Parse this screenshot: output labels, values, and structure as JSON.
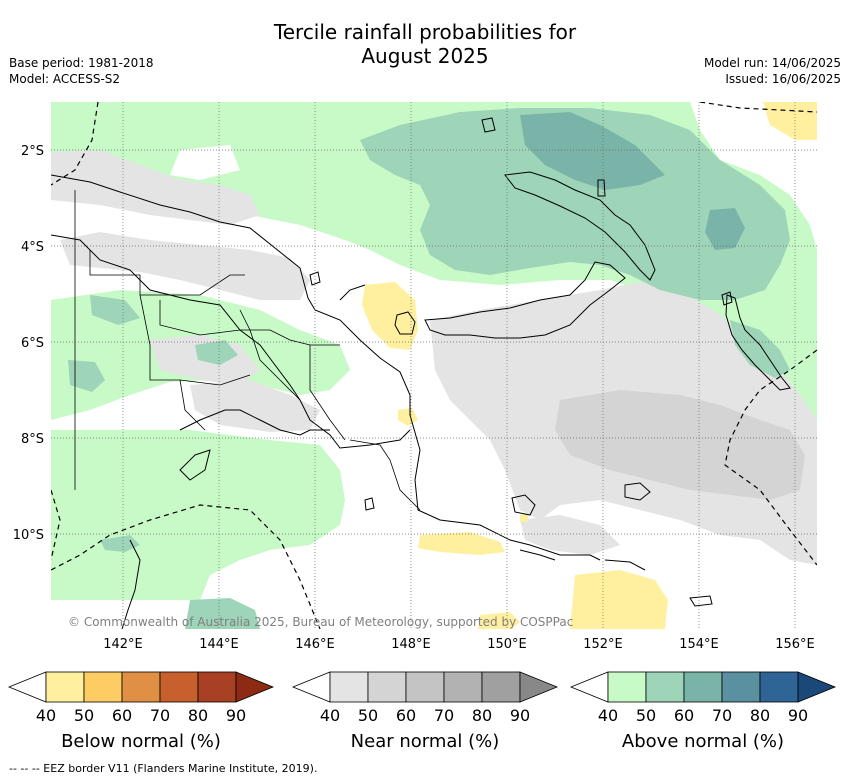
{
  "header": {
    "title_line1": "Tercile rainfall probabilities for",
    "title_line2": "August 2025",
    "base_period": "Base period: 1981-2018",
    "model": "Model: ACCESS-S2",
    "model_run": "Model run: 14/06/2025",
    "issued": "Issued: 16/06/2025"
  },
  "map": {
    "lat_labels": [
      "2°S",
      "4°S",
      "6°S",
      "8°S",
      "10°S"
    ],
    "lon_labels": [
      "142°E",
      "144°E",
      "146°E",
      "148°E",
      "150°E",
      "152°E",
      "154°E",
      "156°E"
    ],
    "lat_range": [
      -12,
      -1
    ],
    "lon_range": [
      140.5,
      156.5
    ],
    "credit": "© Commonwealth of Australia 2025, Bureau of Meteorology, supported by COSPPac"
  },
  "colorbars": [
    {
      "title": "Below normal (%)",
      "ticks": [
        "40",
        "50",
        "60",
        "70",
        "80",
        "90"
      ],
      "colors": [
        "#ffffff",
        "#fff0a0",
        "#fdcd64",
        "#e09044",
        "#c8602e",
        "#a84024",
        "#8c2a14"
      ]
    },
    {
      "title": "Near normal (%)",
      "ticks": [
        "40",
        "50",
        "60",
        "70",
        "80",
        "90"
      ],
      "colors": [
        "#ffffff",
        "#e4e4e4",
        "#d4d4d4",
        "#c4c4c4",
        "#b2b2b2",
        "#a0a0a0",
        "#888888"
      ]
    },
    {
      "title": "Above normal (%)",
      "ticks": [
        "40",
        "50",
        "60",
        "70",
        "80",
        "90"
      ],
      "colors": [
        "#ffffff",
        "#c8fac8",
        "#9ed4b8",
        "#7ab4a8",
        "#5a90a0",
        "#2f6496",
        "#1a4878"
      ]
    }
  ],
  "footer": "--  --  -- EEZ border V11 (Flanders Marine Institute, 2019)."
}
